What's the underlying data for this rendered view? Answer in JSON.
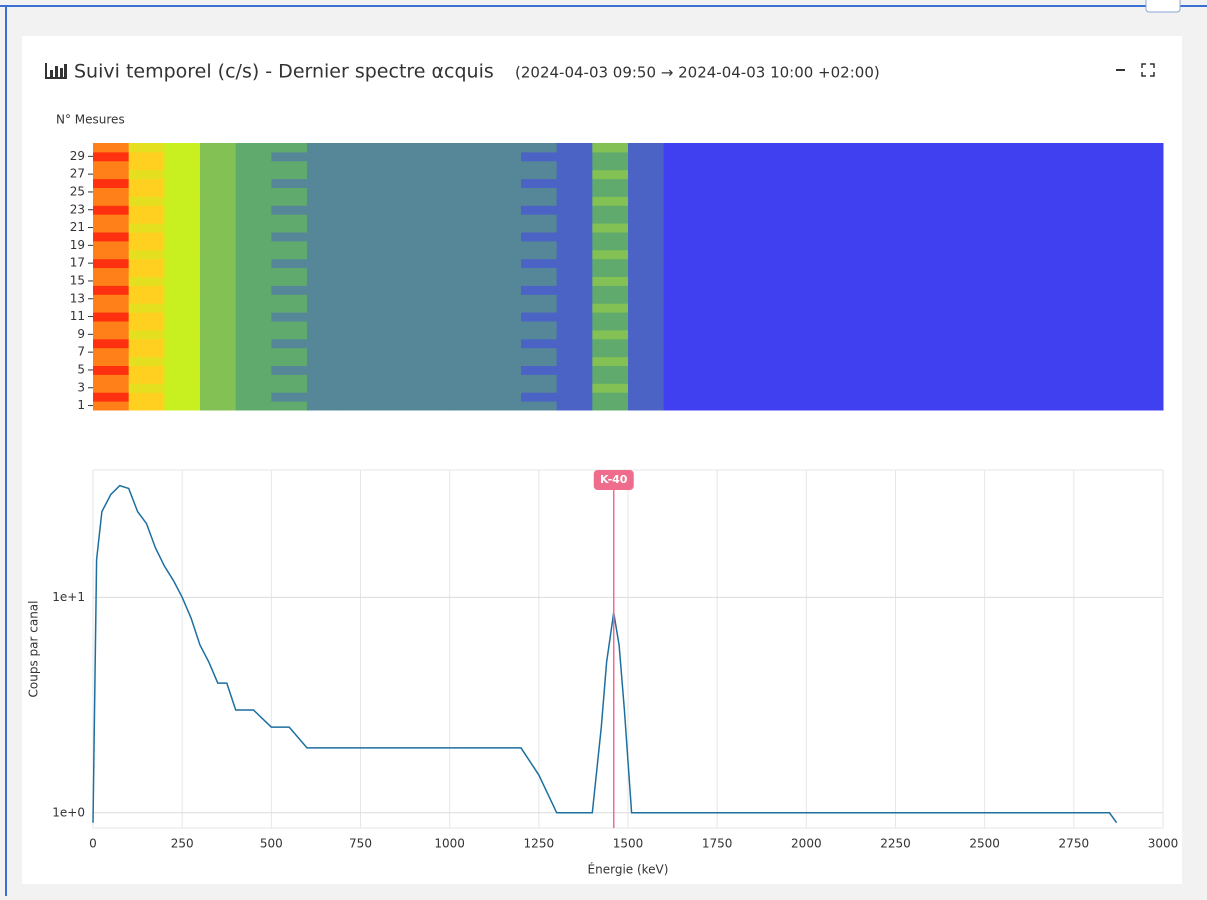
{
  "panel": {
    "title": "Suivi temporel (c/s) - Dernier spectre αcquis",
    "subtitle": "(2024-04-03 09:50 → 2024-04-03 10:00 +02:00)"
  },
  "chart_data": [
    {
      "type": "heatmap",
      "ylabel": "N° Mesures",
      "xbins": [
        0,
        100,
        200,
        300,
        400,
        500,
        600,
        700,
        800,
        900,
        1000,
        1100,
        1200,
        1300,
        1400,
        1500,
        1600,
        1700,
        1800,
        1900,
        2000,
        2100,
        2200,
        2300,
        2400,
        2500,
        2600,
        2700,
        2800,
        2900,
        3000
      ],
      "y": [
        1,
        2,
        3,
        4,
        5,
        6,
        7,
        8,
        9,
        10,
        11,
        12,
        13,
        14,
        15,
        16,
        17,
        18,
        19,
        20,
        21,
        22,
        23,
        24,
        25,
        26,
        27,
        28,
        29,
        30
      ],
      "ylim": [
        0.5,
        30.5
      ],
      "yticks": [
        1,
        3,
        5,
        7,
        9,
        11,
        13,
        15,
        17,
        19,
        21,
        23,
        25,
        27,
        29
      ],
      "z": [
        [
          9,
          8,
          6,
          4,
          3,
          3,
          2,
          2,
          2,
          2,
          2,
          2,
          2,
          1,
          3,
          1,
          0,
          0,
          0,
          0,
          0,
          0,
          0,
          0,
          0,
          0,
          0,
          0,
          0,
          0
        ],
        [
          10,
          8,
          6,
          4,
          3,
          2,
          2,
          2,
          2,
          2,
          2,
          2,
          1,
          1,
          3,
          1,
          0,
          0,
          0,
          0,
          0,
          0,
          0,
          0,
          0,
          0,
          0,
          0,
          0,
          0
        ],
        [
          9,
          7,
          6,
          4,
          3,
          3,
          2,
          2,
          2,
          2,
          2,
          2,
          2,
          1,
          4,
          1,
          0,
          0,
          0,
          0,
          0,
          0,
          0,
          0,
          0,
          0,
          0,
          0,
          0,
          0
        ],
        [
          9,
          8,
          6,
          4,
          3,
          3,
          2,
          2,
          2,
          2,
          2,
          2,
          2,
          1,
          3,
          1,
          0,
          0,
          0,
          0,
          0,
          0,
          0,
          0,
          0,
          0,
          0,
          0,
          0,
          0
        ],
        [
          10,
          8,
          6,
          4,
          3,
          2,
          2,
          2,
          2,
          2,
          2,
          2,
          1,
          1,
          3,
          1,
          0,
          0,
          0,
          0,
          0,
          0,
          0,
          0,
          0,
          0,
          0,
          0,
          0,
          0
        ],
        [
          9,
          7,
          6,
          4,
          3,
          3,
          2,
          2,
          2,
          2,
          2,
          2,
          2,
          1,
          4,
          1,
          0,
          0,
          0,
          0,
          0,
          0,
          0,
          0,
          0,
          0,
          0,
          0,
          0,
          0
        ],
        [
          9,
          8,
          6,
          4,
          3,
          3,
          2,
          2,
          2,
          2,
          2,
          2,
          2,
          1,
          3,
          1,
          0,
          0,
          0,
          0,
          0,
          0,
          0,
          0,
          0,
          0,
          0,
          0,
          0,
          0
        ],
        [
          10,
          8,
          6,
          4,
          3,
          2,
          2,
          2,
          2,
          2,
          2,
          2,
          1,
          1,
          3,
          1,
          0,
          0,
          0,
          0,
          0,
          0,
          0,
          0,
          0,
          0,
          0,
          0,
          0,
          0
        ],
        [
          9,
          7,
          6,
          4,
          3,
          3,
          2,
          2,
          2,
          2,
          2,
          2,
          2,
          1,
          4,
          1,
          0,
          0,
          0,
          0,
          0,
          0,
          0,
          0,
          0,
          0,
          0,
          0,
          0,
          0
        ],
        [
          9,
          8,
          6,
          4,
          3,
          3,
          2,
          2,
          2,
          2,
          2,
          2,
          2,
          1,
          3,
          1,
          0,
          0,
          0,
          0,
          0,
          0,
          0,
          0,
          0,
          0,
          0,
          0,
          0,
          0
        ],
        [
          10,
          8,
          6,
          4,
          3,
          2,
          2,
          2,
          2,
          2,
          2,
          2,
          1,
          1,
          3,
          1,
          0,
          0,
          0,
          0,
          0,
          0,
          0,
          0,
          0,
          0,
          0,
          0,
          0,
          0
        ],
        [
          9,
          7,
          6,
          4,
          3,
          3,
          2,
          2,
          2,
          2,
          2,
          2,
          2,
          1,
          4,
          1,
          0,
          0,
          0,
          0,
          0,
          0,
          0,
          0,
          0,
          0,
          0,
          0,
          0,
          0
        ],
        [
          9,
          8,
          6,
          4,
          3,
          3,
          2,
          2,
          2,
          2,
          2,
          2,
          2,
          1,
          3,
          1,
          0,
          0,
          0,
          0,
          0,
          0,
          0,
          0,
          0,
          0,
          0,
          0,
          0,
          0
        ],
        [
          10,
          8,
          6,
          4,
          3,
          2,
          2,
          2,
          2,
          2,
          2,
          2,
          1,
          1,
          3,
          1,
          0,
          0,
          0,
          0,
          0,
          0,
          0,
          0,
          0,
          0,
          0,
          0,
          0,
          0
        ],
        [
          9,
          7,
          6,
          4,
          3,
          3,
          2,
          2,
          2,
          2,
          2,
          2,
          2,
          1,
          4,
          1,
          0,
          0,
          0,
          0,
          0,
          0,
          0,
          0,
          0,
          0,
          0,
          0,
          0,
          0
        ],
        [
          9,
          8,
          6,
          4,
          3,
          3,
          2,
          2,
          2,
          2,
          2,
          2,
          2,
          1,
          3,
          1,
          0,
          0,
          0,
          0,
          0,
          0,
          0,
          0,
          0,
          0,
          0,
          0,
          0,
          0
        ],
        [
          10,
          8,
          6,
          4,
          3,
          2,
          2,
          2,
          2,
          2,
          2,
          2,
          1,
          1,
          3,
          1,
          0,
          0,
          0,
          0,
          0,
          0,
          0,
          0,
          0,
          0,
          0,
          0,
          0,
          0
        ],
        [
          9,
          7,
          6,
          4,
          3,
          3,
          2,
          2,
          2,
          2,
          2,
          2,
          2,
          1,
          4,
          1,
          0,
          0,
          0,
          0,
          0,
          0,
          0,
          0,
          0,
          0,
          0,
          0,
          0,
          0
        ],
        [
          9,
          8,
          6,
          4,
          3,
          3,
          2,
          2,
          2,
          2,
          2,
          2,
          2,
          1,
          3,
          1,
          0,
          0,
          0,
          0,
          0,
          0,
          0,
          0,
          0,
          0,
          0,
          0,
          0,
          0
        ],
        [
          10,
          8,
          6,
          4,
          3,
          2,
          2,
          2,
          2,
          2,
          2,
          2,
          1,
          1,
          3,
          1,
          0,
          0,
          0,
          0,
          0,
          0,
          0,
          0,
          0,
          0,
          0,
          0,
          0,
          0
        ],
        [
          9,
          7,
          6,
          4,
          3,
          3,
          2,
          2,
          2,
          2,
          2,
          2,
          2,
          1,
          4,
          1,
          0,
          0,
          0,
          0,
          0,
          0,
          0,
          0,
          0,
          0,
          0,
          0,
          0,
          0
        ],
        [
          9,
          8,
          6,
          4,
          3,
          3,
          2,
          2,
          2,
          2,
          2,
          2,
          2,
          1,
          3,
          1,
          0,
          0,
          0,
          0,
          0,
          0,
          0,
          0,
          0,
          0,
          0,
          0,
          0,
          0
        ],
        [
          10,
          8,
          6,
          4,
          3,
          2,
          2,
          2,
          2,
          2,
          2,
          2,
          1,
          1,
          3,
          1,
          0,
          0,
          0,
          0,
          0,
          0,
          0,
          0,
          0,
          0,
          0,
          0,
          0,
          0
        ],
        [
          9,
          7,
          6,
          4,
          3,
          3,
          2,
          2,
          2,
          2,
          2,
          2,
          2,
          1,
          4,
          1,
          0,
          0,
          0,
          0,
          0,
          0,
          0,
          0,
          0,
          0,
          0,
          0,
          0,
          0
        ],
        [
          9,
          8,
          6,
          4,
          3,
          3,
          2,
          2,
          2,
          2,
          2,
          2,
          2,
          1,
          3,
          1,
          0,
          0,
          0,
          0,
          0,
          0,
          0,
          0,
          0,
          0,
          0,
          0,
          0,
          0
        ],
        [
          10,
          8,
          6,
          4,
          3,
          2,
          2,
          2,
          2,
          2,
          2,
          2,
          1,
          1,
          3,
          1,
          0,
          0,
          0,
          0,
          0,
          0,
          0,
          0,
          0,
          0,
          0,
          0,
          0,
          0
        ],
        [
          9,
          7,
          6,
          4,
          3,
          3,
          2,
          2,
          2,
          2,
          2,
          2,
          2,
          1,
          4,
          1,
          0,
          0,
          0,
          0,
          0,
          0,
          0,
          0,
          0,
          0,
          0,
          0,
          0,
          0
        ],
        [
          9,
          8,
          6,
          4,
          3,
          3,
          2,
          2,
          2,
          2,
          2,
          2,
          2,
          1,
          3,
          1,
          0,
          0,
          0,
          0,
          0,
          0,
          0,
          0,
          0,
          0,
          0,
          0,
          0,
          0
        ],
        [
          10,
          8,
          6,
          4,
          3,
          2,
          2,
          2,
          2,
          2,
          2,
          2,
          1,
          1,
          3,
          1,
          0,
          0,
          0,
          0,
          0,
          0,
          0,
          0,
          0,
          0,
          0,
          0,
          0,
          0
        ],
        [
          9,
          7,
          6,
          4,
          3,
          3,
          2,
          2,
          2,
          2,
          2,
          2,
          2,
          1,
          4,
          1,
          0,
          0,
          0,
          0,
          0,
          0,
          0,
          0,
          0,
          0,
          0,
          0,
          0,
          0
        ]
      ]
    },
    {
      "type": "line",
      "xlabel": "Énergie (keV)",
      "ylabel": "Coups par canal",
      "log_y": true,
      "grid": true,
      "color": "#1d6fa0",
      "x": [
        0,
        10,
        25,
        50,
        75,
        100,
        125,
        150,
        175,
        200,
        225,
        250,
        275,
        300,
        325,
        350,
        375,
        400,
        450,
        500,
        550,
        600,
        650,
        700,
        750,
        800,
        850,
        900,
        950,
        1000,
        1050,
        1100,
        1150,
        1200,
        1250,
        1300,
        1350,
        1400,
        1425,
        1440,
        1460,
        1475,
        1490,
        1510,
        1550,
        1600,
        1700,
        1750,
        1800,
        1850,
        1900,
        2000,
        2250,
        2300,
        2500,
        2650,
        2700,
        2850,
        2870
      ],
      "values": [
        0.9,
        15,
        25,
        30,
        33,
        32,
        25,
        22,
        17,
        14,
        12,
        10,
        8,
        6,
        5,
        4,
        4,
        3,
        3,
        2.5,
        2.5,
        2,
        2,
        2,
        2,
        2,
        2,
        2,
        2,
        2,
        2,
        2,
        2,
        2,
        1.5,
        1,
        1,
        1,
        2.5,
        5,
        8.5,
        6,
        3,
        1,
        1,
        1,
        1,
        1,
        1,
        1,
        1,
        1,
        1,
        1,
        1,
        1,
        1,
        1,
        0.9
      ],
      "xlim": [
        0,
        3000
      ],
      "xticks": [
        0,
        250,
        500,
        750,
        1000,
        1250,
        1500,
        1750,
        2000,
        2250,
        2500,
        2750,
        3000
      ],
      "ylim": [
        0.85,
        39
      ],
      "yticks": [
        {
          "value": 1,
          "label": "1e+0"
        },
        {
          "value": 10,
          "label": "1e+1"
        }
      ],
      "annotations": [
        {
          "x": 1460,
          "label": "K-40"
        }
      ]
    }
  ]
}
